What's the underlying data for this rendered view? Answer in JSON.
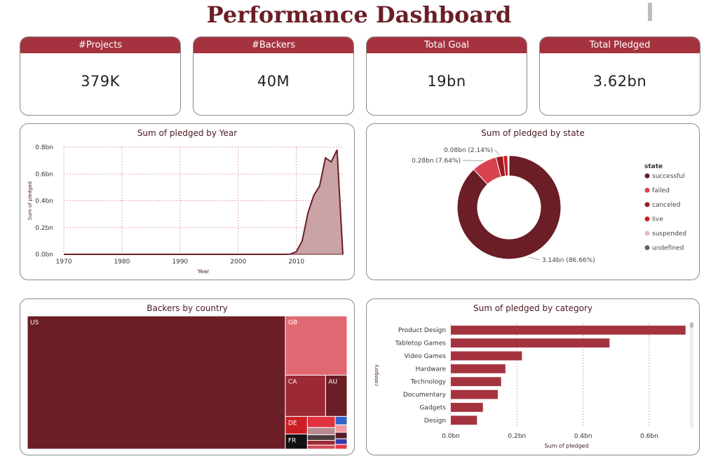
{
  "page": {
    "title": "Performance Dashboard"
  },
  "kpis": [
    {
      "label": "#Projects",
      "value": "379K"
    },
    {
      "label": "#Backers",
      "value": "40M"
    },
    {
      "label": "Total Goal",
      "value": "19bn"
    },
    {
      "label": "Total Pledged",
      "value": "3.62bn"
    }
  ],
  "colors": {
    "primary": "#a5333f",
    "dark": "#6b1e25",
    "area_fill": "#c9a3a6"
  },
  "chart_data": [
    {
      "type": "area",
      "title": "Sum of pledged by Year",
      "xlabel": "Year",
      "ylabel": "Sum of pledged",
      "xlim": [
        1970,
        2018
      ],
      "ylim": [
        0,
        0.8
      ],
      "x_ticks": [
        "1970",
        "1980",
        "1990",
        "2000",
        "2010"
      ],
      "y_ticks": [
        "0.0bn",
        "0.2bn",
        "0.4bn",
        "0.6bn",
        "0.8bn"
      ],
      "grid": true,
      "series": [
        {
          "x": [
            1970,
            2000,
            2008,
            2009,
            2010,
            2011,
            2012,
            2013,
            2014,
            2015,
            2016,
            2017,
            2018
          ],
          "y": [
            0,
            0,
            0,
            0.002,
            0.02,
            0.1,
            0.31,
            0.44,
            0.51,
            0.72,
            0.69,
            0.78,
            0
          ]
        }
      ]
    },
    {
      "type": "pie",
      "title": "Sum of pledged by state",
      "legend_title": "state",
      "legend_position": "right",
      "slices": [
        {
          "name": "successful",
          "value": 3.14,
          "label": "3.14bn (86.66%)",
          "color": "#6b1e25"
        },
        {
          "name": "failed",
          "value": 0.28,
          "label": "0.28bn (7.64%)",
          "color": "#d9434f"
        },
        {
          "name": "canceled",
          "value": 0.08,
          "label": "0.08bn (2.14%)",
          "color": "#9b1b25"
        },
        {
          "name": "live",
          "value": 0.05,
          "label": "",
          "color": "#cc1f24"
        },
        {
          "name": "suspended",
          "value": 0.01,
          "label": "",
          "color": "#f0b9bd"
        },
        {
          "name": "undefined",
          "value": 0.005,
          "label": "",
          "color": "#616161"
        }
      ]
    },
    {
      "type": "heatmap",
      "title": "Backers by country",
      "cells": [
        {
          "name": "US",
          "label": "US",
          "value": 31,
          "color": "#6b1e25"
        },
        {
          "name": "GB",
          "label": "GB",
          "value": 3.3,
          "color": "#e06872"
        },
        {
          "name": "CA",
          "label": "CA",
          "value": 1.5,
          "color": "#9b2a35"
        },
        {
          "name": "AU",
          "label": "AU",
          "value": 0.8,
          "color": "#6b1e25"
        },
        {
          "name": "DE",
          "label": "DE",
          "value": 0.35,
          "color": "#cc1f24"
        },
        {
          "name": "FR",
          "label": "FR",
          "value": 0.3,
          "color": "#111111"
        },
        {
          "name": "other-1",
          "label": "",
          "value": 0.28,
          "color": "#e0323f"
        },
        {
          "name": "other-2",
          "label": "",
          "value": 0.18,
          "color": "#b68a8e"
        },
        {
          "name": "other-3",
          "label": "",
          "value": 0.14,
          "color": "#4e3b3d"
        },
        {
          "name": "other-4",
          "label": "",
          "value": 0.12,
          "color": "#9b2a35"
        },
        {
          "name": "other-5",
          "label": "",
          "value": 0.1,
          "color": "#d14b58"
        },
        {
          "name": "other-6",
          "label": "",
          "value": 0.09,
          "color": "#2f64c8"
        },
        {
          "name": "other-7",
          "label": "",
          "value": 0.08,
          "color": "#f09aa3"
        },
        {
          "name": "other-8",
          "label": "",
          "value": 0.07,
          "color": "#5a1c28"
        },
        {
          "name": "other-9",
          "label": "",
          "value": 0.06,
          "color": "#3a3aa8"
        },
        {
          "name": "other-10",
          "label": "",
          "value": 0.05,
          "color": "#e63a4a"
        }
      ]
    },
    {
      "type": "bar",
      "orientation": "horizontal",
      "title": "Sum of pledged by category",
      "xlabel": "Sum of pledged",
      "ylabel": "category",
      "xlim": [
        0,
        0.7
      ],
      "x_ticks": [
        "0.0bn",
        "0.2bn",
        "0.4bn",
        "0.6bn"
      ],
      "categories": [
        "Product Design",
        "Tabletop Games",
        "Video Games",
        "Hardware",
        "Technology",
        "Documentary",
        "Gadgets",
        "Design"
      ],
      "values": [
        0.71,
        0.48,
        0.215,
        0.165,
        0.152,
        0.142,
        0.097,
        0.079
      ]
    }
  ]
}
